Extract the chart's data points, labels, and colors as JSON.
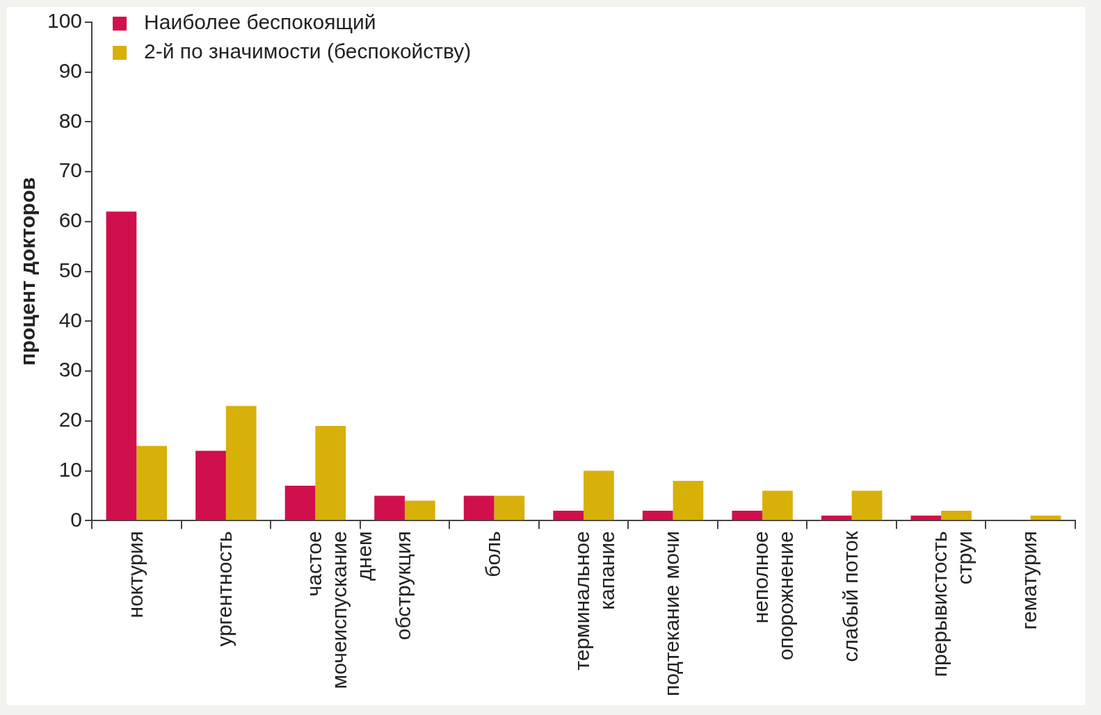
{
  "chart_data": {
    "type": "bar",
    "ylabel": "процент докторов",
    "categories": [
      "ноктурия",
      "ургентность",
      "частое мочеиспускание днем",
      "обструкция",
      "боль",
      "терминальное капание",
      "подтекание мочи",
      "неполное опорожнение",
      "слабый поток",
      "прерывистость струи",
      "гематурия"
    ],
    "series": [
      {
        "name": "Наиболее беспокоящий",
        "color": "#d0104c",
        "values": [
          62,
          14,
          7,
          5,
          5,
          2,
          2,
          2,
          1,
          1,
          0
        ]
      },
      {
        "name": "2-й по значимости (беспокойству)",
        "color": "#d8b00a",
        "values": [
          15,
          23,
          19,
          4,
          5,
          10,
          8,
          6,
          6,
          2,
          1
        ]
      }
    ],
    "ylim": [
      0,
      100
    ],
    "yticks": [
      0,
      10,
      20,
      30,
      40,
      50,
      60,
      70,
      80,
      90,
      100
    ],
    "grid": false,
    "legend": "top left"
  }
}
